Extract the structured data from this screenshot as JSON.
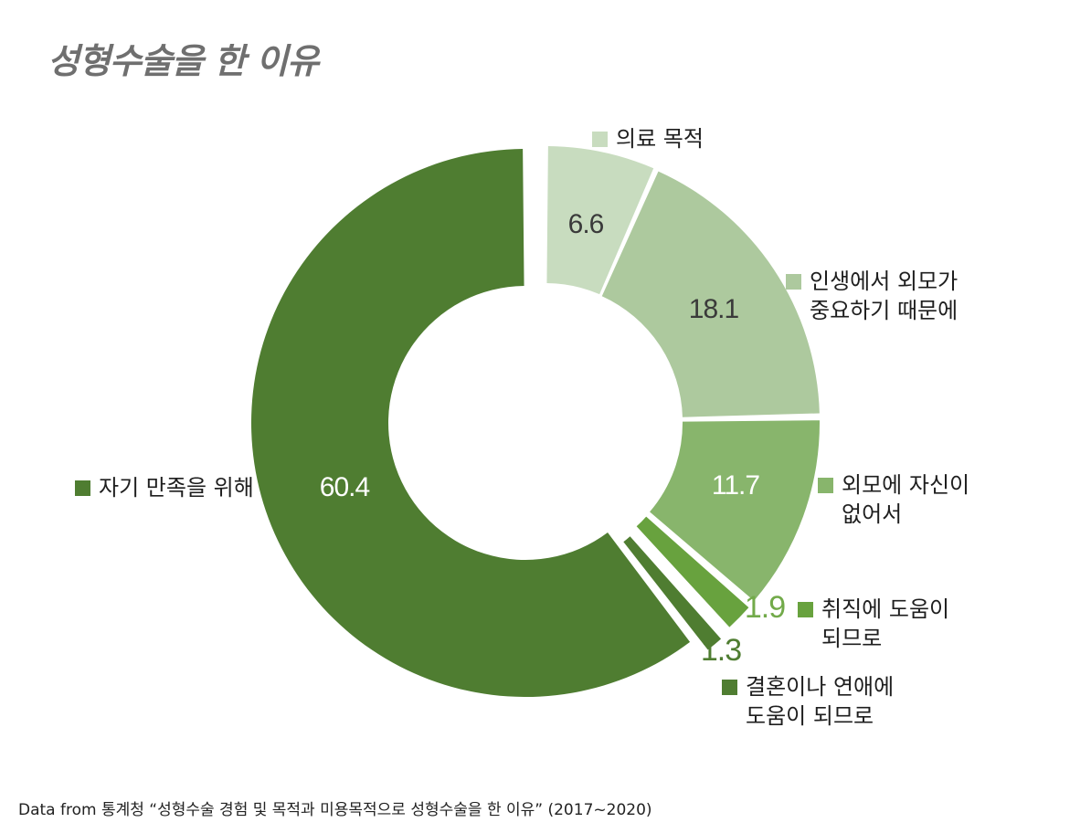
{
  "title": "성형수술을 한 이유",
  "source": "Data from 통계청 “성형수술 경험 및 목적과 미용목적으로 성형수술을 한 이유” (2017~2020)",
  "chart_data": {
    "type": "pie",
    "donut": true,
    "title": "성형수술을 한 이유",
    "slices": [
      {
        "label": "의료 목적",
        "lines": [
          "의료 목적"
        ],
        "value": 6.6,
        "display": "6.6",
        "color": "#c8dcbf",
        "label_color": "#3a3a3a"
      },
      {
        "label": "인생에서 외모가 중요하기 때문에",
        "lines": [
          "인생에서 외모가",
          "중요하기 때문에"
        ],
        "value": 18.1,
        "display": "18.1",
        "color": "#adc99e",
        "label_color": "#3a3a3a"
      },
      {
        "label": "외모에 자신이 없어서",
        "lines": [
          "외모에 자신이",
          "없어서"
        ],
        "value": 11.7,
        "display": "11.7",
        "color": "#88b56c",
        "label_color": "#ffffff"
      },
      {
        "label": "취직에 도움이 되므로",
        "lines": [
          "취직에 도움이",
          "되므로"
        ],
        "value": 1.9,
        "display": "1.9",
        "color": "#68a23e",
        "label_color": "#72aa4a"
      },
      {
        "label": "결혼이나 연애에 도움이 되므로",
        "lines": [
          "결혼이나 연애에",
          "도움이 되므로"
        ],
        "value": 1.3,
        "display": "1.3",
        "color": "#4f7d31",
        "label_color": "#4f7d31"
      },
      {
        "label": "자기 만족을 위해",
        "lines": [
          "자기 만족을 위해"
        ],
        "value": 60.4,
        "display": "60.4",
        "color": "#4f7d31",
        "label_color": "#ffffff"
      }
    ]
  }
}
